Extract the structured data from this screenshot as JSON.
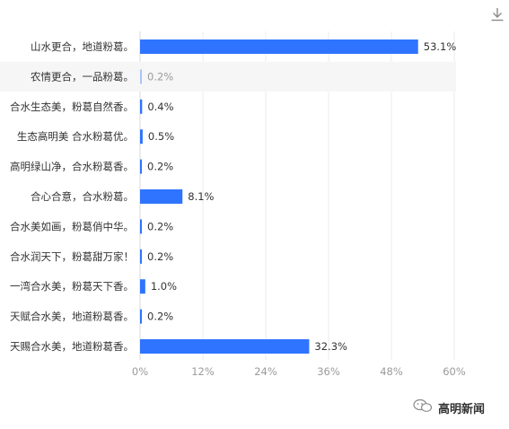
{
  "chart_data": {
    "type": "bar",
    "orientation": "horizontal",
    "categories": [
      "山水更合，地道粉葛。",
      "农情更合，一品粉葛。",
      "合水生态美，粉葛自然香。",
      "生态高明美 合水粉葛优。",
      "高明绿山净，合水粉葛香。",
      "合心合意，合水粉葛。",
      "合水美如画，粉葛俏中华。",
      "合水润天下，粉葛甜万家！",
      "一湾合水美，粉葛天下香。",
      "天赋合水美，地道粉葛香。",
      "天赐合水美，地道粉葛香。"
    ],
    "values": [
      53.1,
      0.2,
      0.4,
      0.5,
      0.2,
      8.1,
      0.2,
      0.2,
      1.0,
      0.2,
      32.3
    ],
    "value_labels": [
      "53.1%",
      "0.2%",
      "0.4%",
      "0.5%",
      "0.2%",
      "8.1%",
      "0.2%",
      "0.2%",
      "1.0%",
      "0.2%",
      "32.3%"
    ],
    "highlighted_index": 1,
    "xlim": [
      0,
      60
    ],
    "x_ticks": [
      "0%",
      "12%",
      "24%",
      "36%",
      "48%",
      "60%"
    ],
    "title": "",
    "xlabel": "",
    "ylabel": "",
    "grid": true,
    "bar_color": "#2f74ff",
    "muted_bar_color": "#a9c4f5"
  },
  "icons": {
    "download": "download-icon",
    "watermark": "wechat-icon"
  },
  "watermark": {
    "text": "高明新闻"
  }
}
